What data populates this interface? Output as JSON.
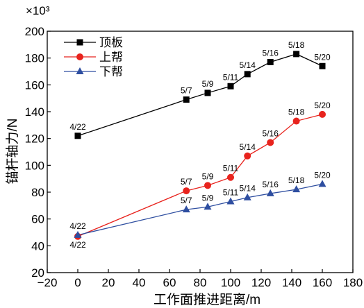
{
  "chart_data": {
    "type": "line",
    "title": "",
    "xlabel": "工作面推进距离/m",
    "ylabel": "锚杆轴力/N",
    "y_multiplier_label": "×10³",
    "xlim": [
      -20,
      180
    ],
    "ylim": [
      20,
      200
    ],
    "xticks": [
      -20,
      0,
      20,
      40,
      60,
      80,
      100,
      120,
      140,
      160,
      180
    ],
    "yticks": [
      20,
      40,
      60,
      80,
      100,
      120,
      140,
      160,
      180,
      200
    ],
    "grid": false,
    "legend_position": "top-left",
    "series": [
      {
        "name": "顶板",
        "color": "#000000",
        "marker": "square",
        "x": [
          0,
          71,
          85,
          100,
          111,
          126,
          143,
          160
        ],
        "y": [
          122,
          149,
          154,
          159,
          168,
          177,
          183,
          174
        ],
        "labels": [
          "4/22",
          "5/7",
          "5/9",
          "5/11",
          "5/14",
          "5/16",
          "5/18",
          "5/20"
        ]
      },
      {
        "name": "上帮",
        "color": "#e8231d",
        "marker": "circle",
        "x": [
          0,
          71,
          85,
          100,
          111,
          126,
          143,
          160
        ],
        "y": [
          47,
          81,
          85,
          91,
          107,
          117,
          133,
          138
        ],
        "labels": [
          "4/22",
          "5/7",
          "5/9",
          "5/11",
          "5/14",
          "5/16",
          "5/18",
          "5/20"
        ]
      },
      {
        "name": "下帮",
        "color": "#2e4ea0",
        "marker": "triangle",
        "x": [
          0,
          71,
          85,
          100,
          111,
          126,
          143,
          160
        ],
        "y": [
          48,
          67,
          69,
          73,
          76,
          79,
          82,
          86
        ],
        "labels": [
          "4/22",
          "5/7",
          "5/9",
          "5/11",
          "5/14",
          "5/16",
          "5/18",
          "5/20"
        ]
      }
    ]
  }
}
